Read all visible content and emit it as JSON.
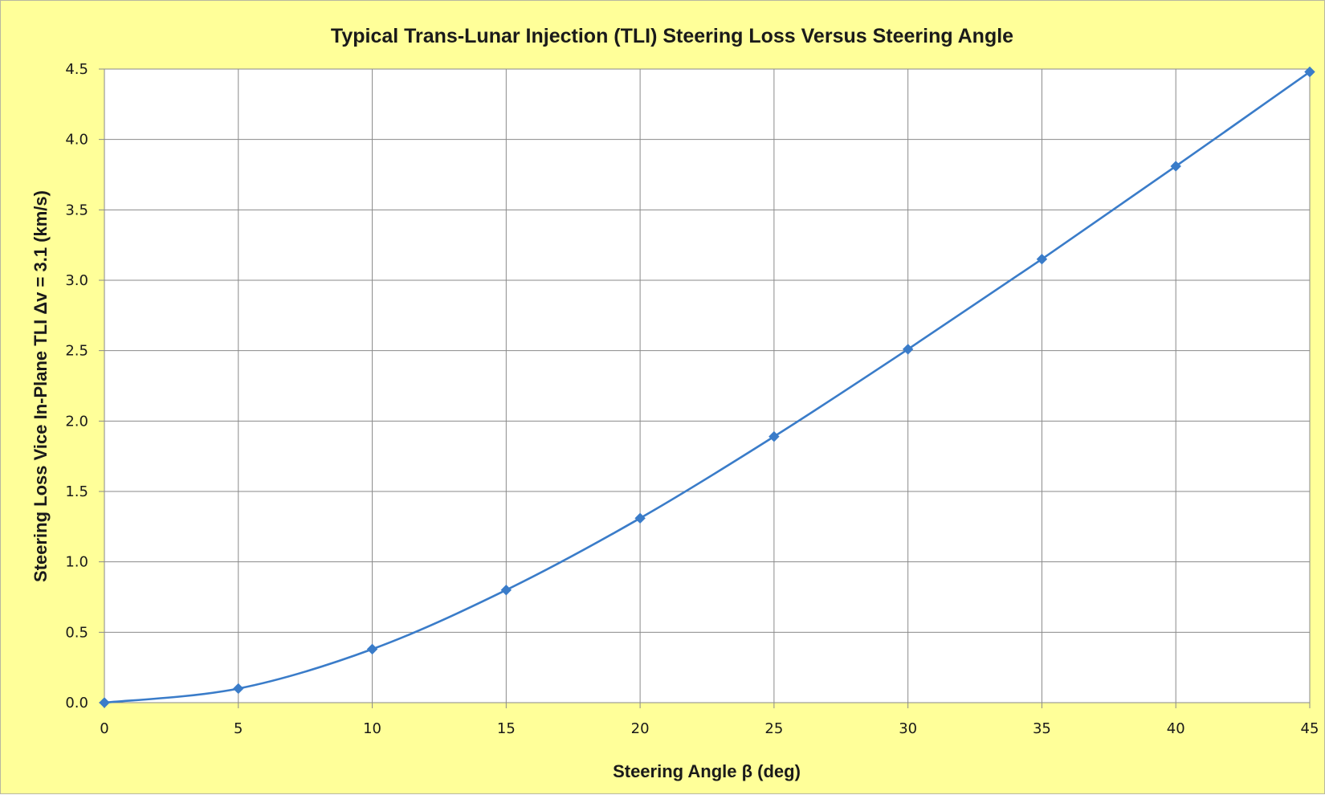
{
  "colors": {
    "chart_background": "#ffff99",
    "plot_background": "#ffffff",
    "gridline": "#8a8a8a",
    "series": "#3a7cc9"
  },
  "chart_data": {
    "type": "line",
    "title": "Typical Trans-Lunar Injection (TLI) Steering Loss Versus Steering Angle",
    "xlabel": "Steering Angle β (deg)",
    "ylabel": "Steering Loss Vice In-Plane TLI Δv = 3.1 (km/s)",
    "xlim": [
      0,
      45
    ],
    "ylim": [
      0,
      4.5
    ],
    "x_ticks": [
      "0",
      "5",
      "10",
      "15",
      "20",
      "25",
      "30",
      "35",
      "40",
      "45"
    ],
    "y_ticks": [
      "0.0",
      "0.5",
      "1.0",
      "1.5",
      "2.0",
      "2.5",
      "3.0",
      "3.5",
      "4.0",
      "4.5"
    ],
    "grid": true,
    "legend": "none",
    "smoothed": true,
    "marker": "diamond",
    "series": [
      {
        "x": [
          0,
          5,
          10,
          15,
          20,
          25,
          30,
          35,
          40,
          45
        ],
        "y": [
          0.0,
          0.1,
          0.38,
          0.8,
          1.31,
          1.89,
          2.51,
          3.15,
          3.81,
          4.48
        ]
      }
    ]
  }
}
